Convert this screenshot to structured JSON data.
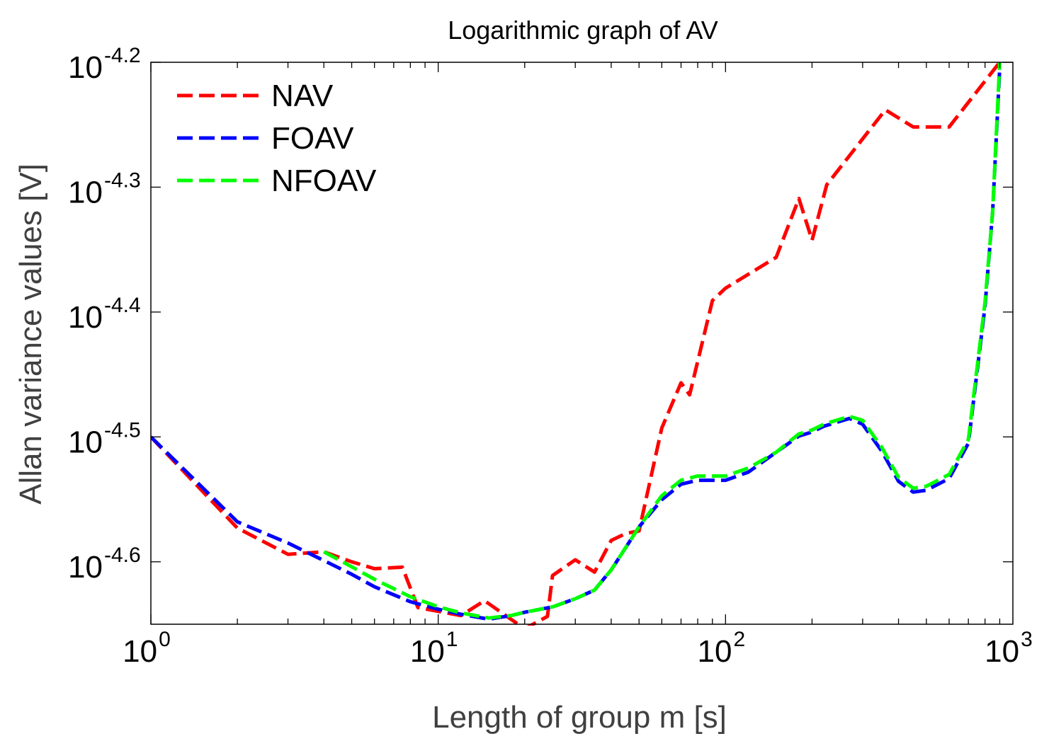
{
  "chart_data": {
    "type": "line",
    "title": "Logarithmic graph of AV",
    "xlabel": "Length of group m [s]",
    "ylabel": "Allan variance values [V]",
    "xscale": "log",
    "yscale": "log",
    "xlim": [
      1,
      1000
    ],
    "ylim_exponent": [
      -4.65,
      -4.2
    ],
    "xticks": [
      {
        "value": 1,
        "base": "10",
        "exp": "0"
      },
      {
        "value": 10,
        "base": "10",
        "exp": "1"
      },
      {
        "value": 100,
        "base": "10",
        "exp": "2"
      },
      {
        "value": 1000,
        "base": "10",
        "exp": "3"
      }
    ],
    "yticks": [
      {
        "exp_value": -4.2,
        "base": "10",
        "exp": "-4.2"
      },
      {
        "exp_value": -4.3,
        "base": "10",
        "exp": "-4.3"
      },
      {
        "exp_value": -4.4,
        "base": "10",
        "exp": "-4.4"
      },
      {
        "exp_value": -4.5,
        "base": "10",
        "exp": "-4.5"
      },
      {
        "exp_value": -4.6,
        "base": "10",
        "exp": "-4.6"
      }
    ],
    "grid": false,
    "legend_position": "top-left",
    "series": [
      {
        "name": "NAV",
        "color": "#ff0000",
        "points": [
          [
            1,
            -4.5
          ],
          [
            2,
            -4.573
          ],
          [
            3,
            -4.594
          ],
          [
            4,
            -4.592
          ],
          [
            5,
            -4.6
          ],
          [
            6,
            -4.6055
          ],
          [
            7.5,
            -4.6043
          ],
          [
            8.5,
            -4.6366
          ],
          [
            12,
            -4.6431
          ],
          [
            14.5,
            -4.6312
          ],
          [
            20,
            -4.6537
          ],
          [
            24,
            -4.6437
          ],
          [
            25,
            -4.611
          ],
          [
            30,
            -4.5984
          ],
          [
            35,
            -4.6083
          ],
          [
            40,
            -4.5829
          ],
          [
            45,
            -4.5773
          ],
          [
            50,
            -4.5753
          ],
          [
            60,
            -4.4929
          ],
          [
            70,
            -4.4567
          ],
          [
            75,
            -4.4663
          ],
          [
            90,
            -4.3908
          ],
          [
            100,
            -4.3809
          ],
          [
            150,
            -4.3562
          ],
          [
            180,
            -4.3091
          ],
          [
            200,
            -4.3425
          ],
          [
            225,
            -4.2981
          ],
          [
            300,
            -4.2613
          ],
          [
            360,
            -4.2381
          ],
          [
            450,
            -4.2518
          ],
          [
            600,
            -4.2518
          ],
          [
            900,
            -4.2
          ]
        ]
      },
      {
        "name": "FOAV",
        "color": "#0000ff",
        "points": [
          [
            1,
            -4.5
          ],
          [
            2,
            -4.568
          ],
          [
            3,
            -4.585
          ],
          [
            4,
            -4.599
          ],
          [
            5,
            -4.61
          ],
          [
            6,
            -4.62
          ],
          [
            8,
            -4.632
          ],
          [
            10,
            -4.638
          ],
          [
            12,
            -4.642
          ],
          [
            15,
            -4.646
          ],
          [
            18,
            -4.643
          ],
          [
            20,
            -4.6404
          ],
          [
            25,
            -4.6361
          ],
          [
            30,
            -4.6296
          ],
          [
            35,
            -4.6226
          ],
          [
            40,
            -4.6065
          ],
          [
            45,
            -4.5884
          ],
          [
            50,
            -4.5721
          ],
          [
            60,
            -4.5503
          ],
          [
            70,
            -4.5379
          ],
          [
            80,
            -4.5347
          ],
          [
            100,
            -4.5347
          ],
          [
            120,
            -4.5282
          ],
          [
            150,
            -4.5123
          ],
          [
            180,
            -4.4993
          ],
          [
            200,
            -4.496
          ],
          [
            220,
            -4.4914
          ],
          [
            270,
            -4.4852
          ],
          [
            300,
            -4.4899
          ],
          [
            350,
            -4.5115
          ],
          [
            400,
            -4.5356
          ],
          [
            450,
            -4.5442
          ],
          [
            500,
            -4.5427
          ],
          [
            600,
            -4.5333
          ],
          [
            700,
            -4.505
          ],
          [
            800,
            -4.395
          ],
          [
            850,
            -4.32
          ],
          [
            900,
            -4.205
          ]
        ]
      },
      {
        "name": "NFOAV",
        "color": "#00ff00",
        "points": [
          [
            4,
            -4.592
          ],
          [
            5,
            -4.604
          ],
          [
            6,
            -4.614
          ],
          [
            8,
            -4.628
          ],
          [
            10,
            -4.636
          ],
          [
            12,
            -4.641
          ],
          [
            15,
            -4.645
          ],
          [
            18,
            -4.643
          ],
          [
            20,
            -4.6404
          ],
          [
            25,
            -4.6361
          ],
          [
            30,
            -4.6296
          ],
          [
            35,
            -4.6226
          ],
          [
            40,
            -4.6065
          ],
          [
            45,
            -4.5884
          ],
          [
            50,
            -4.5721
          ],
          [
            60,
            -4.5471
          ],
          [
            70,
            -4.5347
          ],
          [
            80,
            -4.5313
          ],
          [
            100,
            -4.5313
          ],
          [
            120,
            -4.525
          ],
          [
            150,
            -4.5123
          ],
          [
            180,
            -4.4976
          ],
          [
            200,
            -4.4944
          ],
          [
            220,
            -4.4898
          ],
          [
            270,
            -4.4835
          ],
          [
            300,
            -4.4868
          ],
          [
            350,
            -4.5084
          ],
          [
            400,
            -4.5325
          ],
          [
            450,
            -4.5411
          ],
          [
            500,
            -4.5395
          ],
          [
            600,
            -4.5301
          ],
          [
            700,
            -4.502
          ],
          [
            800,
            -4.392
          ],
          [
            850,
            -4.32
          ],
          [
            900,
            -4.2
          ]
        ]
      }
    ]
  }
}
